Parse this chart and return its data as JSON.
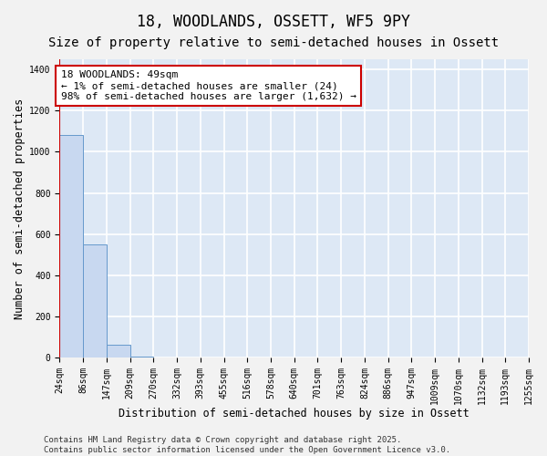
{
  "title": "18, WOODLANDS, OSSETT, WF5 9PY",
  "subtitle": "Size of property relative to semi-detached houses in Ossett",
  "xlabel": "Distribution of semi-detached houses by size in Ossett",
  "ylabel": "Number of semi-detached properties",
  "bins": [
    "24sqm",
    "86sqm",
    "147sqm",
    "209sqm",
    "270sqm",
    "332sqm",
    "393sqm",
    "455sqm",
    "516sqm",
    "578sqm",
    "640sqm",
    "701sqm",
    "763sqm",
    "824sqm",
    "886sqm",
    "947sqm",
    "1009sqm",
    "1070sqm",
    "1132sqm",
    "1193sqm",
    "1255sqm"
  ],
  "values": [
    1080,
    550,
    60,
    5,
    2,
    1,
    0,
    0,
    0,
    0,
    0,
    0,
    0,
    0,
    0,
    0,
    0,
    0,
    0,
    0
  ],
  "bar_color": "#c8d8f0",
  "bar_edge_color": "#6699cc",
  "property_line_x": 0.0,
  "annotation_text": "18 WOODLANDS: 49sqm\n← 1% of semi-detached houses are smaller (24)\n98% of semi-detached houses are larger (1,632) →",
  "annotation_box_color": "#ffffff",
  "annotation_box_edge_color": "#cc0000",
  "line_color": "#cc0000",
  "ylim": [
    0,
    1450
  ],
  "yticks": [
    0,
    200,
    400,
    600,
    800,
    1000,
    1200,
    1400
  ],
  "footer": "Contains HM Land Registry data © Crown copyright and database right 2025.\nContains public sector information licensed under the Open Government Licence v3.0.",
  "background_color": "#dde8f5",
  "grid_color": "#ffffff",
  "fig_background": "#f2f2f2",
  "title_fontsize": 12,
  "subtitle_fontsize": 10,
  "axis_label_fontsize": 8.5,
  "tick_fontsize": 7,
  "annotation_fontsize": 8,
  "footer_fontsize": 6.5
}
